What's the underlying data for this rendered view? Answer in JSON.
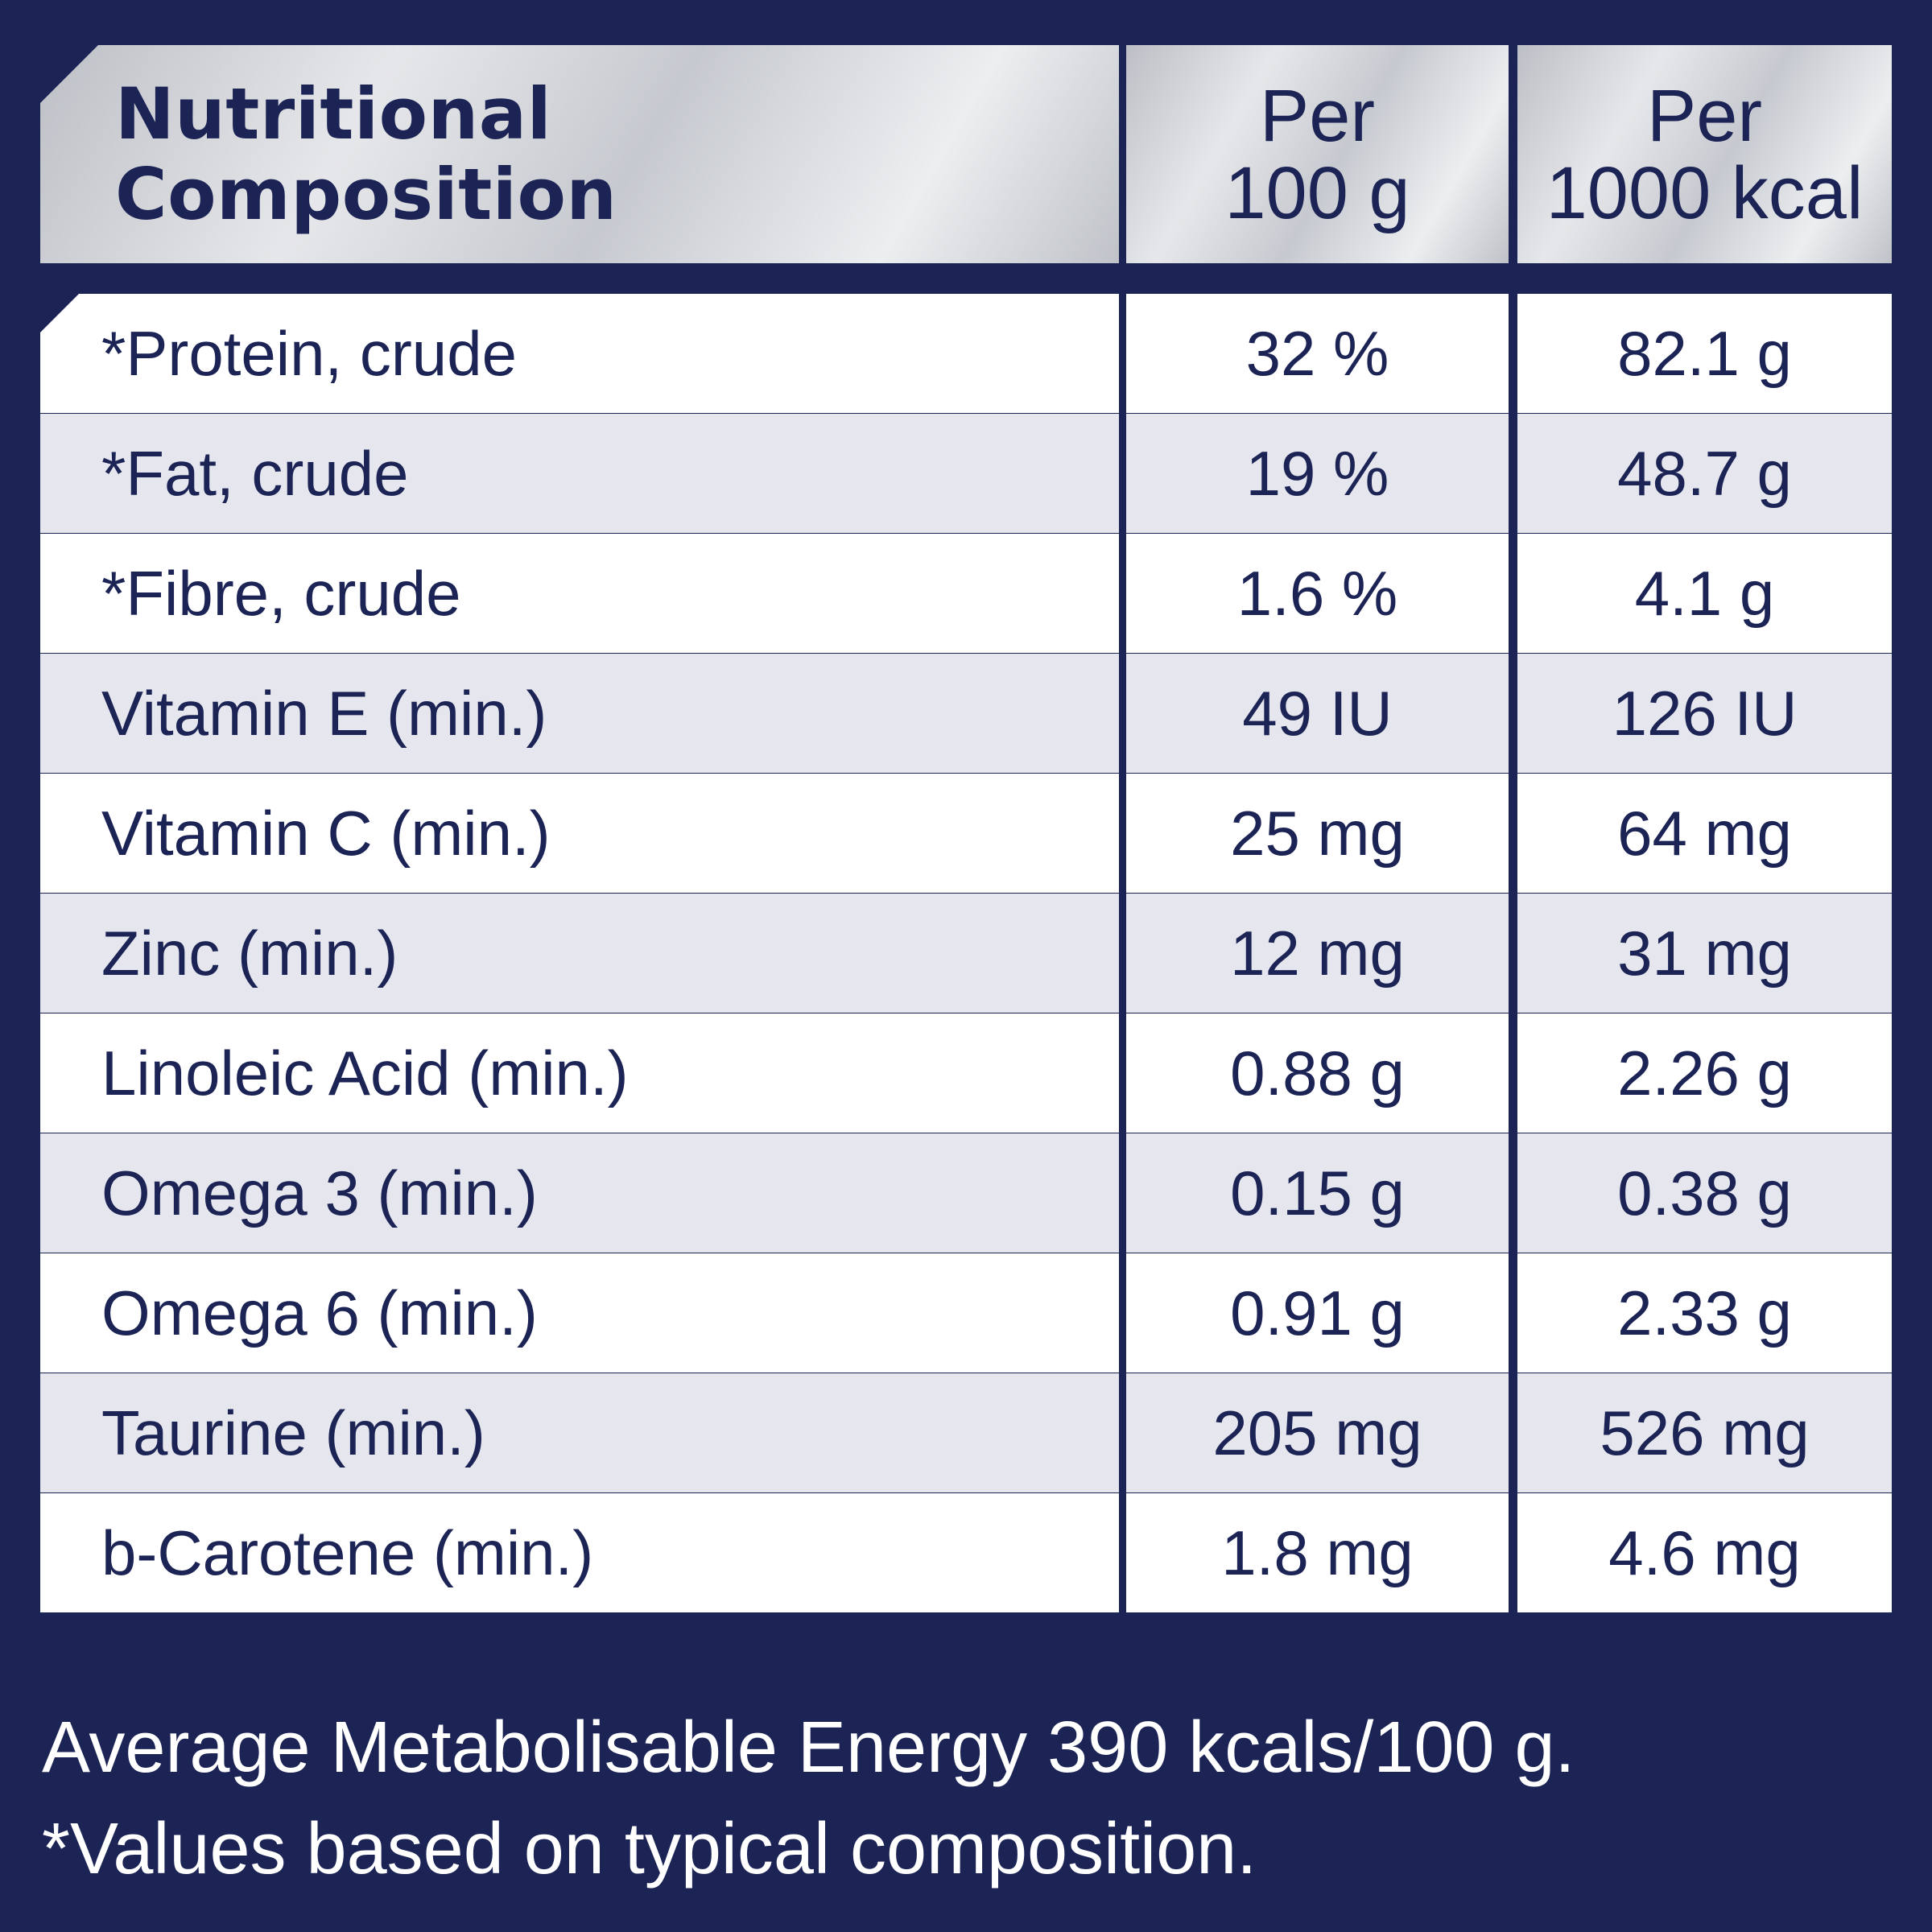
{
  "header": {
    "title_line1": "Nutritional",
    "title_line2": "Composition",
    "col1_line1": "Per",
    "col1_line2": "100 g",
    "col2_line1": "Per",
    "col2_line2": "1000 kcal"
  },
  "rows": [
    {
      "name": "*Protein, crude",
      "per100g": "32 %",
      "per1000kcal": "82.1 g"
    },
    {
      "name": "*Fat, crude",
      "per100g": "19 %",
      "per1000kcal": "48.7 g"
    },
    {
      "name": "*Fibre, crude",
      "per100g": "1.6 %",
      "per1000kcal": "4.1 g"
    },
    {
      "name": "Vitamin E (min.)",
      "per100g": "49 IU",
      "per1000kcal": "126 IU"
    },
    {
      "name": "Vitamin C (min.)",
      "per100g": "25 mg",
      "per1000kcal": "64 mg"
    },
    {
      "name": "Zinc (min.)",
      "per100g": "12 mg",
      "per1000kcal": "31 mg"
    },
    {
      "name": "Linoleic Acid (min.)",
      "per100g": "0.88 g",
      "per1000kcal": "2.26 g"
    },
    {
      "name": "Omega 3 (min.)",
      "per100g": "0.15 g",
      "per1000kcal": "0.38 g"
    },
    {
      "name": "Omega 6 (min.)",
      "per100g": "0.91 g",
      "per1000kcal": "2.33 g"
    },
    {
      "name": "Taurine (min.)",
      "per100g": "205 mg",
      "per1000kcal": "526 mg"
    },
    {
      "name": "b-Carotene (min.)",
      "per100g": "1.8 mg",
      "per1000kcal": "4.6 mg"
    }
  ],
  "footer": {
    "line1": "Average Metabolisable Energy 390 kcals/100 g.",
    "line2": "*Values based on typical composition."
  },
  "colors": {
    "navy": "#1c2456",
    "row_light": "#ffffff",
    "row_dark": "#e6e7ee",
    "header_silver": "#d4d6da"
  }
}
